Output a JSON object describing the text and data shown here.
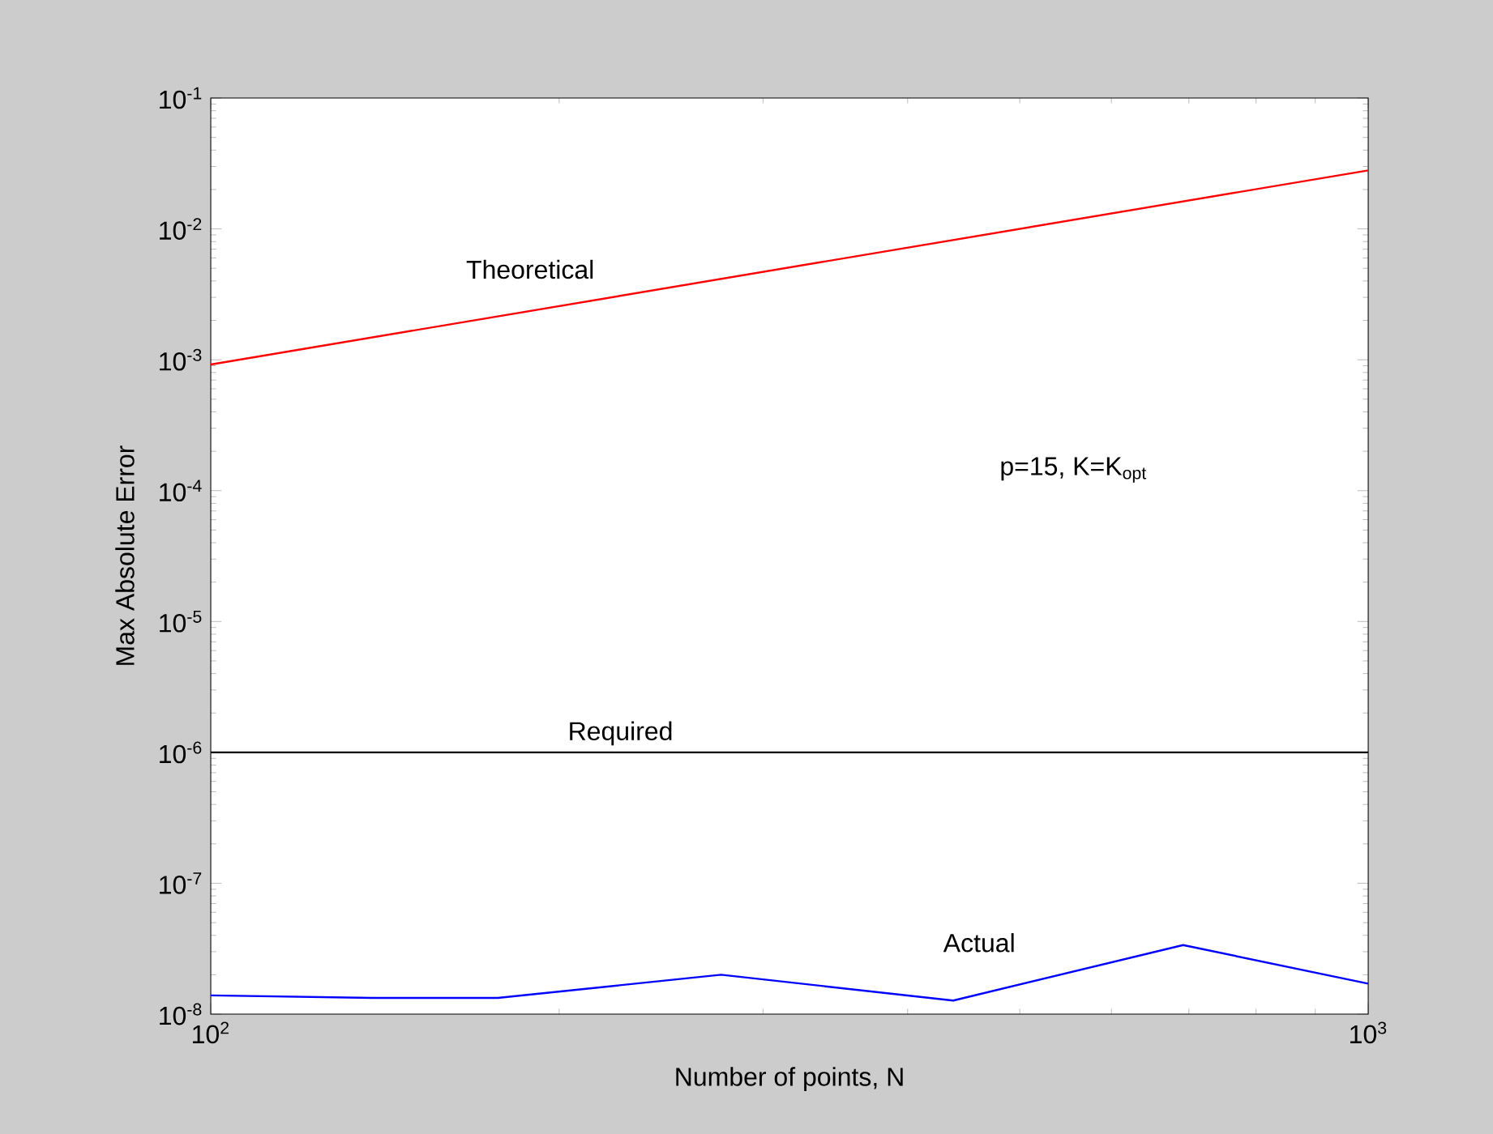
{
  "chart_data": {
    "type": "line",
    "xlabel": "Number of points, N",
    "ylabel": "Max Absolute Error",
    "log": "xy",
    "grid": false,
    "marker": "none",
    "line_style": "solid",
    "xlim": [
      100,
      1000
    ],
    "ylim": [
      1e-08,
      0.1
    ],
    "xticks": [
      {
        "value": 100,
        "label": "10$^{2}$"
      },
      {
        "value": 1000,
        "label": "10$^{3}$"
      }
    ],
    "yticks": [
      {
        "value": 1e-08,
        "label": "10$^{-8}$"
      },
      {
        "value": 1e-07,
        "label": "10$^{-7}$"
      },
      {
        "value": 1e-06,
        "label": "10$^{-6}$"
      },
      {
        "value": 1e-05,
        "label": "10$^{-5}$"
      },
      {
        "value": 0.0001,
        "label": "10$^{-4}$"
      },
      {
        "value": 0.001,
        "label": "10$^{-3}$"
      },
      {
        "value": 0.01,
        "label": "10$^{-2}$"
      },
      {
        "value": 0.1,
        "label": "10$^{-1}$"
      }
    ],
    "series": [
      {
        "color": "#ff0000",
        "x": [
          100,
          1000
        ],
        "values": [
          0.00092,
          0.028
        ]
      },
      {
        "color": "#0000ff",
        "x": [
          100,
          138,
          177,
          276,
          438,
          692,
          1000
        ],
        "values": [
          1.39e-08,
          1.33e-08,
          1.33e-08,
          2e-08,
          1.27e-08,
          3.37e-08,
          1.71e-08
        ]
      }
    ],
    "ref_lines": [
      {
        "axis": "y",
        "value": 1e-06,
        "label": "Required",
        "color": "#000000"
      }
    ],
    "annotations": [
      "Theoretical",
      "Actual",
      "p=15, K=K$_{opt}$"
    ]
  }
}
